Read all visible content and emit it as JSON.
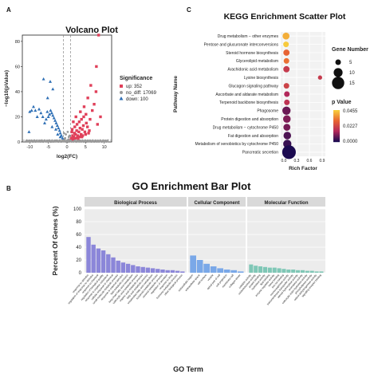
{
  "panels": {
    "a": {
      "letter": "A",
      "title": "Volcano Plot"
    },
    "c": {
      "letter": "C",
      "title": "KEGG Enrichment Scatter Plot"
    },
    "b": {
      "letter": "B",
      "title": "GO Enrichment Bar Plot"
    }
  },
  "chart_data": [
    {
      "type": "scatter",
      "title": "Volcano Plot",
      "xlabel": "log2(FC)",
      "ylabel": "−log10(pValue)",
      "xlim": [
        -12,
        12
      ],
      "ylim": [
        0,
        85
      ],
      "xticks": [
        "-10",
        "-5",
        "0",
        "5",
        "10"
      ],
      "yticks": [
        "0",
        "20",
        "40",
        "60",
        "80"
      ],
      "threshold_lines": {
        "x": [
          -1,
          1
        ],
        "y": 1.3
      },
      "legend": {
        "title": "Significance",
        "items": [
          {
            "label": "up: 352",
            "color": "#e0405a",
            "shape": "square"
          },
          {
            "label": "no_diff: 17069",
            "color": "#9a9a9a",
            "shape": "circle"
          },
          {
            "label": "down: 100",
            "color": "#2e6fb5",
            "shape": "triangle"
          }
        ]
      },
      "series": [
        {
          "name": "up",
          "color": "#e0405a",
          "shape": "square",
          "points": [
            [
              1.2,
              3
            ],
            [
              1.5,
              5
            ],
            [
              1.8,
              4
            ],
            [
              2,
              7
            ],
            [
              2.3,
              6
            ],
            [
              2.6,
              9
            ],
            [
              2.9,
              5
            ],
            [
              3.2,
              8
            ],
            [
              3.5,
              11
            ],
            [
              3.8,
              6
            ],
            [
              4.1,
              10
            ],
            [
              4.4,
              13
            ],
            [
              4.8,
              8
            ],
            [
              5.2,
              15
            ],
            [
              5.5,
              12
            ],
            [
              1.4,
              10
            ],
            [
              2.1,
              12
            ],
            [
              2.7,
              14
            ],
            [
              3.3,
              16
            ],
            [
              3.9,
              18
            ],
            [
              4.5,
              20
            ],
            [
              5.1,
              22
            ],
            [
              6.2,
              18
            ],
            [
              6.8,
              25
            ],
            [
              7.3,
              30
            ],
            [
              7.8,
              40
            ],
            [
              8.5,
              85
            ],
            [
              7.9,
              60
            ],
            [
              6.4,
              45
            ],
            [
              5.6,
              35
            ],
            [
              4.6,
              28
            ],
            [
              3.6,
              24
            ],
            [
              2.4,
              20
            ],
            [
              1.7,
              16
            ],
            [
              1.3,
              8
            ],
            [
              2.2,
              3
            ],
            [
              3,
              2.5
            ],
            [
              4,
              4
            ],
            [
              5,
              6
            ],
            [
              6,
              9
            ],
            [
              9,
              20
            ],
            [
              8.2,
              14
            ],
            [
              1.1,
              2
            ],
            [
              1.6,
              2.2
            ],
            [
              2.8,
              3.5
            ],
            [
              3.4,
              4
            ],
            [
              4.2,
              5
            ],
            [
              5.8,
              7
            ]
          ]
        },
        {
          "name": "no_diff",
          "color": "#9a9a9a",
          "shape": "circle",
          "points": [
            [
              -10,
              0.5
            ],
            [
              -9,
              0.8
            ],
            [
              -8,
              0.4
            ],
            [
              -7,
              1.0
            ],
            [
              -6,
              0.6
            ],
            [
              -5,
              0.9
            ],
            [
              -4,
              0.3
            ],
            [
              -3,
              1.1
            ],
            [
              -2,
              0.7
            ],
            [
              -1,
              1.2
            ],
            [
              0,
              0.9
            ],
            [
              1,
              1.1
            ],
            [
              2,
              0.6
            ],
            [
              3,
              0.9
            ],
            [
              4,
              0.4
            ],
            [
              5,
              0.8
            ],
            [
              6,
              0.5
            ],
            [
              7,
              0.7
            ],
            [
              8,
              0.3
            ],
            [
              9,
              0.6
            ],
            [
              10,
              0.4
            ],
            [
              -0.5,
              3
            ],
            [
              0.5,
              4
            ],
            [
              -0.3,
              6
            ],
            [
              0.2,
              8
            ],
            [
              0.7,
              5
            ],
            [
              -0.8,
              7
            ],
            [
              0.4,
              2
            ],
            [
              -0.6,
              2.5
            ]
          ]
        },
        {
          "name": "down",
          "color": "#2e6fb5",
          "shape": "triangle",
          "points": [
            [
              -1.2,
              3
            ],
            [
              -1.5,
              5
            ],
            [
              -1.8,
              7
            ],
            [
              -2,
              9
            ],
            [
              -2.3,
              11
            ],
            [
              -2.6,
              13
            ],
            [
              -2.9,
              15
            ],
            [
              -3.2,
              17
            ],
            [
              -3.5,
              19
            ],
            [
              -3.8,
              21
            ],
            [
              -4.1,
              23
            ],
            [
              -4.4,
              25
            ],
            [
              -4.7,
              22
            ],
            [
              -5,
              20
            ],
            [
              -5.3,
              24
            ],
            [
              -5.6,
              18
            ],
            [
              -4,
              12
            ],
            [
              -3,
              10
            ],
            [
              -2.5,
              6
            ],
            [
              -1.8,
              4
            ],
            [
              -6,
              15
            ],
            [
              -6.5,
              20
            ],
            [
              -7,
              23
            ],
            [
              -7.5,
              26
            ],
            [
              -8,
              20
            ],
            [
              -8.5,
              25
            ],
            [
              -9,
              28
            ],
            [
              -9.5,
              25
            ],
            [
              -10,
              24
            ],
            [
              -6.3,
              50
            ],
            [
              -4.5,
              48
            ],
            [
              -3.8,
              42
            ],
            [
              -5.2,
              35
            ],
            [
              -10.2,
              8
            ]
          ]
        }
      ]
    },
    {
      "type": "scatter",
      "title": "KEGG Enrichment Scatter Plot",
      "xlabel": "Rich Factor",
      "ylabel": "Pathway Name",
      "xticks": [
        "0.0",
        "0.3",
        "0.6",
        "0.9"
      ],
      "xlim": [
        0,
        0.9
      ],
      "categories": [
        "Drug metabolism − other enzymes",
        "Pentose and glucuronate interconversions",
        "Steroid hormone biosynthesis",
        "Glycerolipid metabolism",
        "Arachidonic acid metabolism",
        "Lysine biosynthesis",
        "Glucagon signaling pathway",
        "Ascorbate and aldarate metabolism",
        "Terpenoid backbone biosynthesis",
        "Phagosome",
        "Protein digestion and absorption",
        "Drug metabolism − cytochrome P450",
        "Fat digestion and absorption",
        "Metabolism of xenobiotics by cytochrome P450",
        "Pancreatic secretion"
      ],
      "rich_factor": [
        0.05,
        0.05,
        0.06,
        0.06,
        0.06,
        0.85,
        0.06,
        0.07,
        0.07,
        0.06,
        0.07,
        0.07,
        0.08,
        0.08,
        0.12
      ],
      "gene_number": [
        7,
        5,
        6,
        5,
        6,
        3,
        5,
        5,
        5,
        9,
        8,
        7,
        8,
        9,
        17
      ],
      "p_value": [
        0.041,
        0.045,
        0.03,
        0.032,
        0.02,
        0.02,
        0.022,
        0.015,
        0.018,
        0.008,
        0.01,
        0.009,
        0.005,
        0.003,
        0.0001
      ],
      "legend": {
        "size_title": "Gene Number",
        "size_values": [
          "5",
          "10",
          "15"
        ],
        "color_title": "p Value",
        "color_ticks": [
          "0.0455",
          "0.0227",
          "0.0000"
        ]
      }
    },
    {
      "type": "bar",
      "title": "GO Enrichment Bar Plot",
      "xlabel": "GO Term",
      "ylabel": "Percent Of Genes (%)",
      "ylim": [
        0,
        100
      ],
      "yticks": [
        "0",
        "20",
        "40",
        "60",
        "80",
        "100"
      ],
      "facets": [
        {
          "name": "Biological Process",
          "color": "#8b86d9",
          "categories": [
            "response to stimulus",
            "regulation of response to stimulus",
            "response to chemical",
            "regulation of biological quality",
            "response to organic substance",
            "cellular response to chemical",
            "small molecule metabolic process",
            "response to external stimulus",
            "lipid metabolic process",
            "long-chain fatty acid metabolism",
            "carboxylic acid metabolic process",
            "organic acid metabolic process",
            "fatty acid metabolic process",
            "unsaturated fatty acid metabolism",
            "icosanoid metabolic process",
            "oxoacid metabolic process",
            "regulation of secretion",
            "response to drug",
            "hormone metabolic process",
            "other biological process"
          ],
          "values": [
            56,
            44,
            38,
            35,
            29,
            24,
            19,
            16,
            14,
            12,
            10,
            9,
            8,
            7,
            6,
            5,
            4,
            4,
            3,
            2
          ]
        },
        {
          "name": "Cellular Component",
          "color": "#7aa8e8",
          "categories": [
            "extracellular region",
            "extracellular space",
            "cell surface",
            "vesicle",
            "apical part of cell",
            "cell projection",
            "membrane raft",
            "collagen trimer"
          ],
          "values": [
            27,
            20,
            14,
            10,
            7,
            5,
            4,
            2
          ]
        },
        {
          "name": "Molecular Function",
          "color": "#7fc7b6",
          "categories": [
            "catalytic activity",
            "oxidoreductase activity",
            "protein binding",
            "hydrolase activity",
            "lipid binding",
            "enzyme regulator activity",
            "heme binding",
            "iron ion binding",
            "monooxygenase activity",
            "transmembrane transporter activity",
            "steroid hydroxylase activity",
            "aromatase activity",
            "carboxylic ester hydrolase activity",
            "phospholipase activity",
            "retinol dehydrogenase activity",
            "signaling receptor binding"
          ],
          "values": [
            13,
            11,
            10,
            9,
            8,
            8,
            7,
            6,
            5,
            5,
            4,
            4,
            3,
            3,
            2,
            2
          ]
        }
      ]
    }
  ]
}
